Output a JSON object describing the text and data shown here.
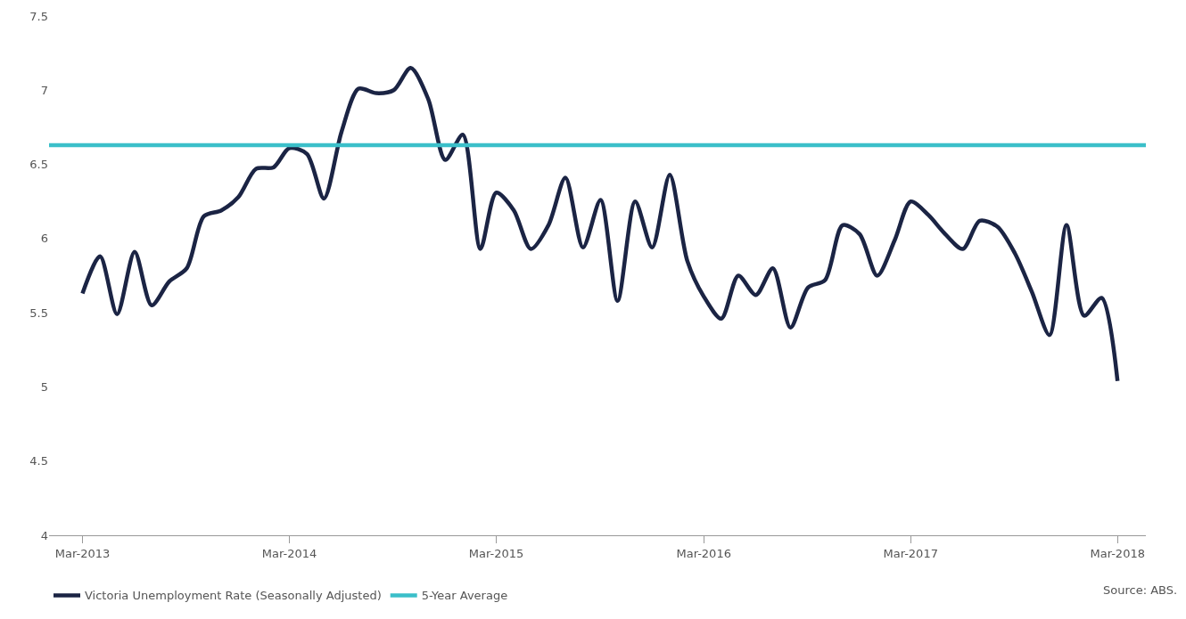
{
  "chart_data": {
    "type": "line",
    "x": [
      "2013-03",
      "2013-04",
      "2013-05",
      "2013-06",
      "2013-07",
      "2013-08",
      "2013-09",
      "2013-10",
      "2013-11",
      "2013-12",
      "2014-01",
      "2014-02",
      "2014-03",
      "2014-04",
      "2014-05",
      "2014-06",
      "2014-07",
      "2014-08",
      "2014-09",
      "2014-10",
      "2014-11",
      "2014-12",
      "2015-01",
      "2015-02",
      "2015-03",
      "2015-04",
      "2015-05",
      "2015-06",
      "2015-07",
      "2015-08",
      "2015-09",
      "2015-10",
      "2015-11",
      "2015-12",
      "2016-01",
      "2016-02",
      "2016-03",
      "2016-04",
      "2016-05",
      "2016-06",
      "2016-07",
      "2016-08",
      "2016-09",
      "2016-10",
      "2016-11",
      "2016-12",
      "2017-01",
      "2017-02",
      "2017-03",
      "2017-04",
      "2017-05",
      "2017-06",
      "2017-07",
      "2017-08",
      "2017-09",
      "2017-10",
      "2017-11",
      "2017-12",
      "2018-01",
      "2018-02",
      "2018-03"
    ],
    "series": [
      {
        "name": "Victoria Unemployment Rate (Seasonally Adjusted)",
        "color": "#1b2444",
        "values": [
          5.63,
          5.88,
          5.49,
          5.91,
          5.55,
          5.71,
          5.8,
          6.15,
          6.19,
          6.28,
          6.47,
          6.48,
          6.61,
          6.57,
          6.27,
          6.72,
          7.01,
          6.98,
          7.0,
          7.15,
          6.94,
          6.53,
          6.7,
          5.93,
          6.31,
          6.19,
          5.93,
          6.09,
          6.41,
          5.94,
          6.26,
          5.58,
          6.25,
          5.94,
          6.43,
          5.85,
          5.61,
          5.46,
          5.75,
          5.62,
          5.8,
          5.4,
          5.67,
          5.72,
          6.09,
          6.03,
          5.75,
          5.99,
          6.25,
          6.16,
          6.03,
          5.93,
          6.12,
          6.08,
          5.9,
          5.64,
          5.35,
          6.09,
          5.48,
          5.6,
          5.04
        ]
      }
    ],
    "ref_lines": [
      {
        "axis": "y",
        "value": 6.63,
        "label": "5-Year Average",
        "color": "#3bbfc9"
      }
    ],
    "xlim": [
      "2013-01-01",
      "2018-04-20"
    ],
    "xticks": [
      {
        "value": "2013-03",
        "label": "Mar-2013"
      },
      {
        "value": "2014-03",
        "label": "Mar-2014"
      },
      {
        "value": "2015-03",
        "label": "Mar-2015"
      },
      {
        "value": "2016-03",
        "label": "Mar-2016"
      },
      {
        "value": "2017-03",
        "label": "Mar-2017"
      },
      {
        "value": "2018-03",
        "label": "Mar-2018"
      }
    ],
    "ylim": [
      4,
      7.5
    ],
    "yticks": [
      4,
      4.5,
      5,
      5.5,
      6,
      6.5,
      7,
      7.5
    ],
    "grid": false,
    "legend": "bottom left",
    "marker": "none",
    "line_style": "solid",
    "annotations": [
      "Source: ABS."
    ]
  }
}
